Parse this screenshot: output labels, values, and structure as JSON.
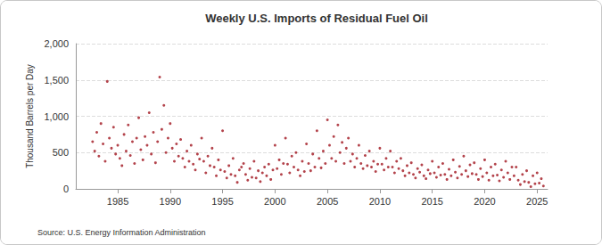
{
  "chart_data": {
    "type": "scatter",
    "title": "Weekly U.S. Imports of Residual Fuel Oil",
    "y_label": "Thousand Barrels per Day",
    "source": "Source: U.S. Energy Information Administration",
    "color": "#a0141e",
    "marker": "circle",
    "grid": true,
    "xlim": [
      1981,
      2026
    ],
    "xticks": [
      1985,
      1990,
      1995,
      2000,
      2005,
      2010,
      2015,
      2020,
      2025
    ],
    "ylim": [
      0,
      2000
    ],
    "yticks": [
      0,
      500,
      {
        "value": 1000,
        "label": "1,000"
      },
      {
        "value": 1500,
        "label": "1,500"
      },
      {
        "value": 2000,
        "label": "2,000"
      }
    ],
    "x": [
      1982.6,
      1982.8,
      1983.0,
      1983.2,
      1983.4,
      1983.6,
      1983.8,
      1984.0,
      1984.2,
      1984.4,
      1984.6,
      1984.8,
      1985.0,
      1985.2,
      1985.4,
      1985.6,
      1985.8,
      1986.0,
      1986.2,
      1986.4,
      1986.6,
      1986.8,
      1987.0,
      1987.2,
      1987.4,
      1987.6,
      1987.8,
      1988.0,
      1988.2,
      1988.4,
      1988.6,
      1988.8,
      1989.0,
      1989.2,
      1989.4,
      1989.6,
      1989.8,
      1990.0,
      1990.2,
      1990.4,
      1990.6,
      1990.8,
      1991.0,
      1991.2,
      1991.4,
      1991.6,
      1991.8,
      1992.0,
      1992.2,
      1992.4,
      1992.6,
      1992.8,
      1993.0,
      1993.2,
      1993.4,
      1993.6,
      1993.8,
      1994.0,
      1994.2,
      1994.4,
      1994.6,
      1994.8,
      1995.0,
      1995.2,
      1995.4,
      1995.6,
      1995.8,
      1996.0,
      1996.2,
      1996.4,
      1996.6,
      1996.8,
      1997.0,
      1997.2,
      1997.4,
      1997.6,
      1997.8,
      1998.0,
      1998.2,
      1998.4,
      1998.6,
      1998.8,
      1999.0,
      1999.2,
      1999.4,
      1999.6,
      1999.8,
      2000.0,
      2000.2,
      2000.4,
      2000.6,
      2000.8,
      2001.0,
      2001.2,
      2001.4,
      2001.6,
      2001.8,
      2002.0,
      2002.2,
      2002.4,
      2002.6,
      2002.8,
      2003.0,
      2003.2,
      2003.4,
      2003.6,
      2003.8,
      2004.0,
      2004.2,
      2004.4,
      2004.6,
      2004.8,
      2005.0,
      2005.2,
      2005.4,
      2005.6,
      2005.8,
      2006.0,
      2006.2,
      2006.4,
      2006.6,
      2006.8,
      2007.0,
      2007.2,
      2007.4,
      2007.6,
      2007.8,
      2008.0,
      2008.2,
      2008.4,
      2008.6,
      2008.8,
      2009.0,
      2009.2,
      2009.4,
      2009.6,
      2009.8,
      2010.0,
      2010.2,
      2010.4,
      2010.6,
      2010.8,
      2011.0,
      2011.2,
      2011.4,
      2011.6,
      2011.8,
      2012.0,
      2012.2,
      2012.4,
      2012.6,
      2012.8,
      2013.0,
      2013.2,
      2013.4,
      2013.6,
      2013.8,
      2014.0,
      2014.2,
      2014.4,
      2014.6,
      2014.8,
      2015.0,
      2015.2,
      2015.4,
      2015.6,
      2015.8,
      2016.0,
      2016.2,
      2016.4,
      2016.6,
      2016.8,
      2017.0,
      2017.2,
      2017.4,
      2017.6,
      2017.8,
      2018.0,
      2018.2,
      2018.4,
      2018.6,
      2018.8,
      2019.0,
      2019.2,
      2019.4,
      2019.6,
      2019.8,
      2020.0,
      2020.2,
      2020.4,
      2020.6,
      2020.8,
      2021.0,
      2021.2,
      2021.4,
      2021.6,
      2021.8,
      2022.0,
      2022.2,
      2022.4,
      2022.6,
      2022.8,
      2023.0,
      2023.2,
      2023.4,
      2023.6,
      2023.8,
      2024.0,
      2024.2,
      2024.4,
      2024.6,
      2024.8,
      2025.0,
      2025.2,
      2025.4,
      2025.6
    ],
    "values": [
      650,
      520,
      780,
      450,
      900,
      620,
      380,
      1480,
      700,
      560,
      850,
      480,
      600,
      420,
      320,
      750,
      520,
      880,
      460,
      650,
      350,
      700,
      980,
      540,
      400,
      720,
      600,
      1050,
      480,
      780,
      360,
      650,
      1540,
      820,
      1150,
      500,
      700,
      900,
      560,
      380,
      620,
      450,
      680,
      420,
      300,
      520,
      380,
      600,
      340,
      260,
      480,
      410,
      700,
      380,
      220,
      450,
      320,
      560,
      300,
      180,
      400,
      260,
      800,
      240,
      150,
      320,
      200,
      420,
      180,
      90,
      260,
      300,
      350,
      200,
      120,
      280,
      160,
      380,
      150,
      250,
      100,
      220,
      300,
      180,
      340,
      130,
      260,
      600,
      280,
      400,
      200,
      350,
      700,
      340,
      220,
      450,
      300,
      500,
      260,
      180,
      380,
      240,
      620,
      350,
      250,
      480,
      300,
      800,
      420,
      290,
      520,
      350,
      950,
      600,
      420,
      720,
      380,
      880,
      500,
      640,
      350,
      560,
      700,
      380,
      480,
      300,
      420,
      600,
      350,
      280,
      460,
      320,
      520,
      300,
      380,
      240,
      340,
      560,
      340,
      260,
      420,
      300,
      520,
      300,
      220,
      380,
      280,
      420,
      250,
      180,
      320,
      220,
      360,
      200,
      150,
      280,
      230,
      330,
      180,
      140,
      260,
      210,
      380,
      220,
      160,
      300,
      190,
      350,
      200,
      130,
      270,
      180,
      400,
      230,
      150,
      310,
      200,
      450,
      250,
      170,
      330,
      210,
      360,
      200,
      130,
      280,
      170,
      400,
      220,
      120,
      300,
      180,
      340,
      190,
      110,
      260,
      160,
      380,
      220,
      130,
      300,
      180,
      300,
      120,
      60,
      200,
      100,
      250,
      90,
      30,
      180,
      70,
      220,
      80,
      140,
      40
    ]
  }
}
